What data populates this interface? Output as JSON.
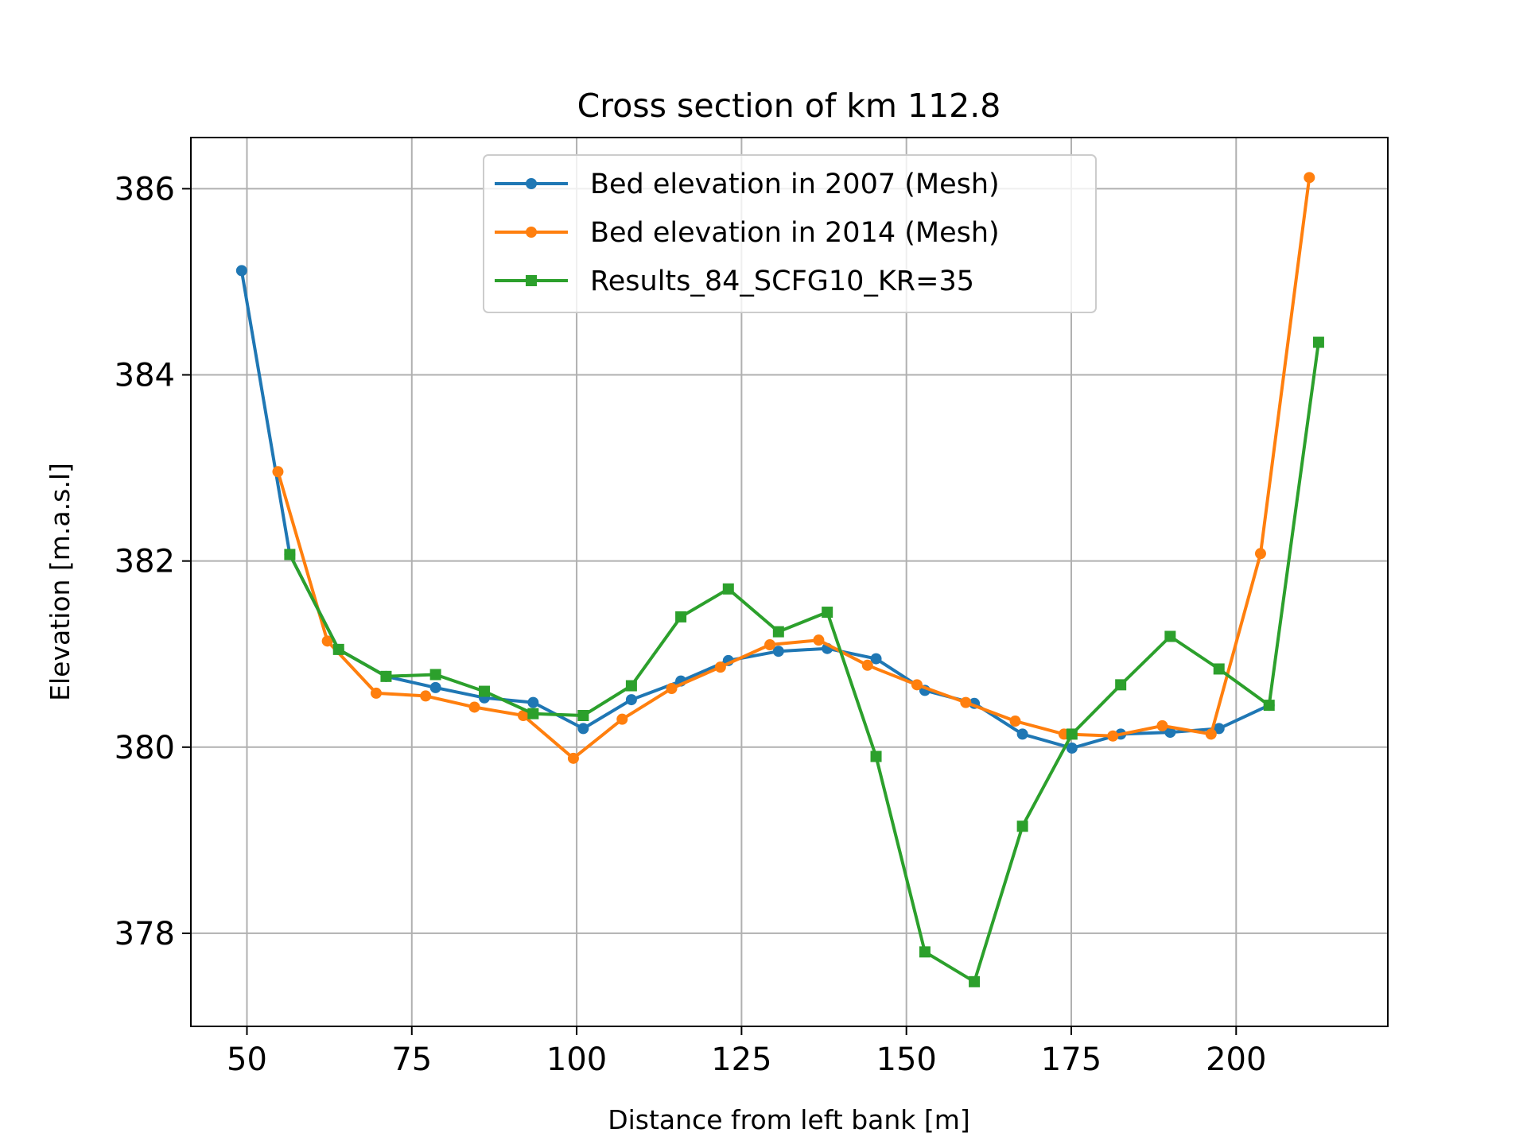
{
  "chart_data": {
    "type": "line",
    "title": "Cross section of km 112.8",
    "xlabel": "Distance from left bank [m]",
    "ylabel": "Elevation [m.a.s.l]",
    "xlim": [
      41.5,
      223.0
    ],
    "ylim": [
      377.0,
      386.55
    ],
    "x_ticks": [
      50,
      75,
      100,
      125,
      150,
      175,
      200
    ],
    "y_ticks": [
      378,
      380,
      382,
      384,
      386
    ],
    "grid": true,
    "legend_position": "upper center",
    "series": [
      {
        "name": "Bed elevation in 2007 (Mesh)",
        "color": "#1f77b4",
        "marker": "circle",
        "x": [
          49.2,
          56.5,
          63.9,
          71.1,
          78.6,
          86.0,
          93.4,
          101.0,
          108.3,
          115.8,
          123.0,
          130.6,
          138.0,
          145.4,
          152.8,
          160.3,
          167.6,
          175.1,
          182.5,
          190.0,
          197.4,
          205.0
        ],
        "y": [
          385.12,
          382.07,
          381.05,
          380.76,
          380.64,
          380.53,
          380.48,
          380.2,
          380.51,
          380.71,
          380.93,
          381.03,
          381.06,
          380.95,
          380.61,
          380.47,
          380.14,
          379.99,
          380.14,
          380.16,
          380.2,
          380.45
        ]
      },
      {
        "name": "Bed elevation in 2014 (Mesh)",
        "color": "#ff7f0e",
        "marker": "circle",
        "x": [
          54.7,
          62.2,
          69.6,
          77.1,
          84.5,
          91.9,
          99.5,
          106.9,
          114.4,
          121.8,
          129.3,
          136.7,
          144.1,
          151.6,
          159.0,
          166.5,
          173.9,
          181.3,
          188.8,
          196.2,
          203.7,
          211.1
        ],
        "y": [
          382.96,
          381.14,
          380.58,
          380.55,
          380.43,
          380.34,
          379.88,
          380.3,
          380.63,
          380.86,
          381.1,
          381.15,
          380.88,
          380.67,
          380.48,
          380.28,
          380.14,
          380.12,
          380.23,
          380.14,
          382.08,
          386.12
        ]
      },
      {
        "name": "Results_84_SCFG10_KR=35",
        "color": "#2ca02c",
        "marker": "square",
        "x": [
          56.5,
          63.9,
          71.1,
          78.6,
          86.0,
          93.4,
          101.0,
          108.3,
          115.8,
          123.0,
          130.6,
          138.0,
          145.4,
          152.8,
          160.3,
          167.6,
          175.1,
          182.5,
          190.0,
          197.4,
          205.0,
          212.5
        ],
        "y": [
          382.07,
          381.05,
          380.76,
          380.78,
          380.6,
          380.36,
          380.34,
          380.66,
          381.4,
          381.7,
          381.24,
          381.45,
          379.9,
          377.8,
          377.48,
          379.15,
          380.14,
          380.67,
          381.19,
          380.84,
          380.45,
          384.35
        ]
      }
    ]
  }
}
